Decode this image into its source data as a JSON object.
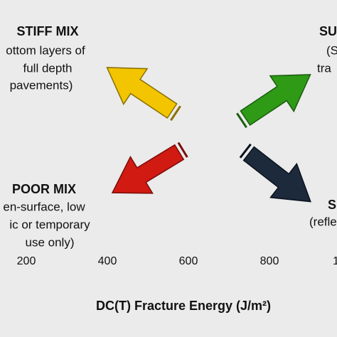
{
  "quadrants": {
    "top_left": {
      "title": "STIFF MIX",
      "lines": [
        "ottom layers of",
        "full depth",
        "pavements)"
      ]
    },
    "top_right": {
      "title": "SU",
      "lines": [
        "(S",
        "tra"
      ]
    },
    "bottom_left": {
      "title": "POOR MIX",
      "lines": [
        "en-surface, low",
        "ic or temporary",
        "use only)"
      ]
    },
    "bottom_right": {
      "title": "S",
      "lines": [
        "(refle"
      ]
    }
  },
  "axis": {
    "ticks": [
      "200",
      "400",
      "600",
      "800",
      "1"
    ],
    "label": "DC(T) Fracture Energy (J/m²)"
  }
}
